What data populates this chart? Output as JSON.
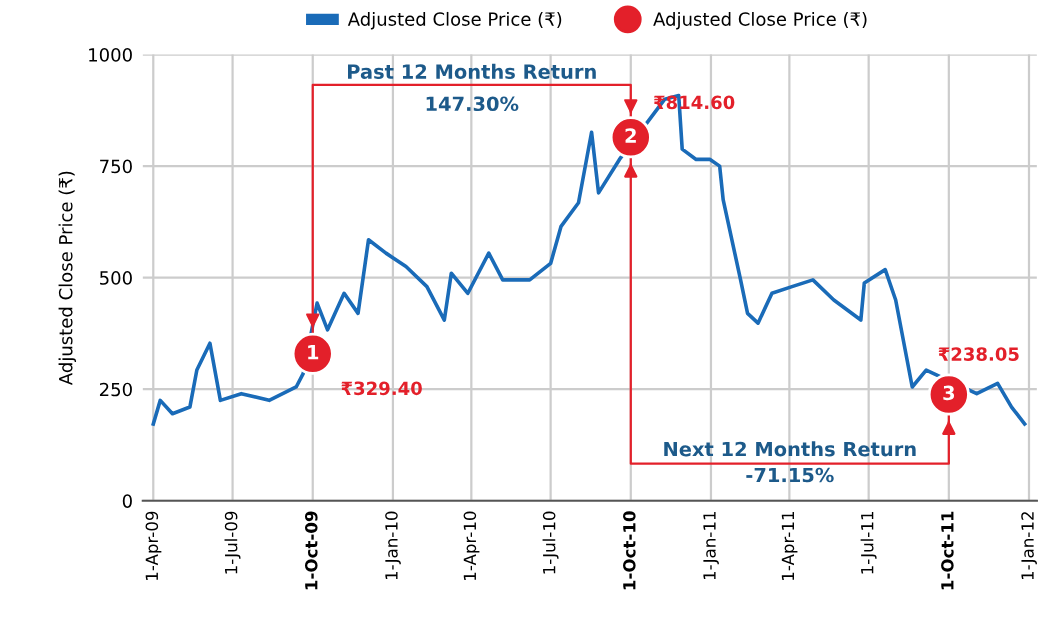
{
  "chart_data": {
    "type": "line",
    "ylabel": "Adjusted Close Price (₹)",
    "legend": "top",
    "grid": true,
    "ylim": [
      0,
      1000
    ],
    "yticks": [
      0,
      250,
      500,
      750,
      1000
    ],
    "xlim": [
      "2009-03-20",
      "2012-01-10"
    ],
    "xticks": [
      {
        "value": "2009-04-01",
        "label": "1-Apr-09"
      },
      {
        "value": "2009-07-01",
        "label": "1-Jul-09"
      },
      {
        "value": "2009-10-01",
        "label": "1-Oct-09"
      },
      {
        "value": "2010-01-01",
        "label": "1-Jan-10"
      },
      {
        "value": "2010-04-01",
        "label": "1-Apr-10"
      },
      {
        "value": "2010-07-01",
        "label": "1-Jul-10"
      },
      {
        "value": "2010-10-01",
        "label": "1-Oct-10"
      },
      {
        "value": "2011-01-01",
        "label": "1-Jan-11"
      },
      {
        "value": "2011-04-01",
        "label": "1-Apr-11"
      },
      {
        "value": "2011-07-01",
        "label": "1-Jul-11"
      },
      {
        "value": "2011-10-01",
        "label": "1-Oct-11"
      },
      {
        "value": "2012-01-01",
        "label": "1-Jan-12"
      }
    ],
    "series": [
      {
        "name": "Adjusted Close Price (₹)",
        "color": "#1a6bb8",
        "marker": "none",
        "line_style": "solid",
        "x": [
          "2009-04-01",
          "2009-04-09",
          "2009-04-23",
          "2009-05-13",
          "2009-05-21",
          "2009-06-05",
          "2009-06-17",
          "2009-07-11",
          "2009-08-12",
          "2009-09-12",
          "2009-09-20",
          "2009-10-06",
          "2009-10-18",
          "2009-11-06",
          "2009-11-22",
          "2009-12-04",
          "2009-12-24",
          "2010-01-16",
          "2010-02-09",
          "2010-03-01",
          "2010-03-09",
          "2010-03-28",
          "2010-04-21",
          "2010-05-07",
          "2010-06-07",
          "2010-07-01",
          "2010-07-13",
          "2010-08-02",
          "2010-08-17",
          "2010-08-25",
          "2010-09-18",
          "2010-11-09",
          "2010-11-25",
          "2010-11-29",
          "2010-12-15",
          "2010-12-31",
          "2011-01-11",
          "2011-01-15",
          "2011-02-04",
          "2011-02-12",
          "2011-02-24",
          "2011-03-12",
          "2011-04-04",
          "2011-04-28",
          "2011-05-22",
          "2011-06-22",
          "2011-06-26",
          "2011-07-20",
          "2011-08-01",
          "2011-08-20",
          "2011-09-05",
          "2011-11-02",
          "2011-11-26",
          "2011-12-12",
          "2011-12-27"
        ],
        "values": [
          172,
          225,
          195,
          210,
          293,
          353,
          225,
          240,
          225,
          255,
          285,
          443,
          383,
          465,
          420,
          585,
          555,
          525,
          480,
          405,
          510,
          465,
          555,
          495,
          495,
          532,
          615,
          668,
          826,
          690,
          765,
          900,
          908,
          788,
          765,
          765,
          750,
          675,
          495,
          420,
          398,
          465,
          480,
          495,
          450,
          405,
          488,
          518,
          450,
          255,
          293,
          240,
          263,
          210,
          172
        ]
      },
      {
        "name": "Adjusted Close Price (₹)",
        "type": "scatter",
        "color": "#e3202a",
        "marker": "circle",
        "x": [
          "2009-10-01",
          "2010-10-01",
          "2011-10-01"
        ],
        "values": [
          329.4,
          814.6,
          238.05
        ],
        "value_labels": [
          "₹329.40",
          "₹814.60",
          "₹238.05"
        ]
      }
    ],
    "annotations": [
      {
        "text": "1",
        "x": "2009-10-01",
        "y": 329.4
      },
      {
        "text": "2",
        "x": "2010-10-01",
        "y": 814.6
      },
      {
        "text": "3",
        "x": "2011-10-01",
        "y": 238.05
      },
      "Past 12 Months Return",
      "147.30%",
      "Next 12 Months Return",
      "-71.15%"
    ]
  }
}
